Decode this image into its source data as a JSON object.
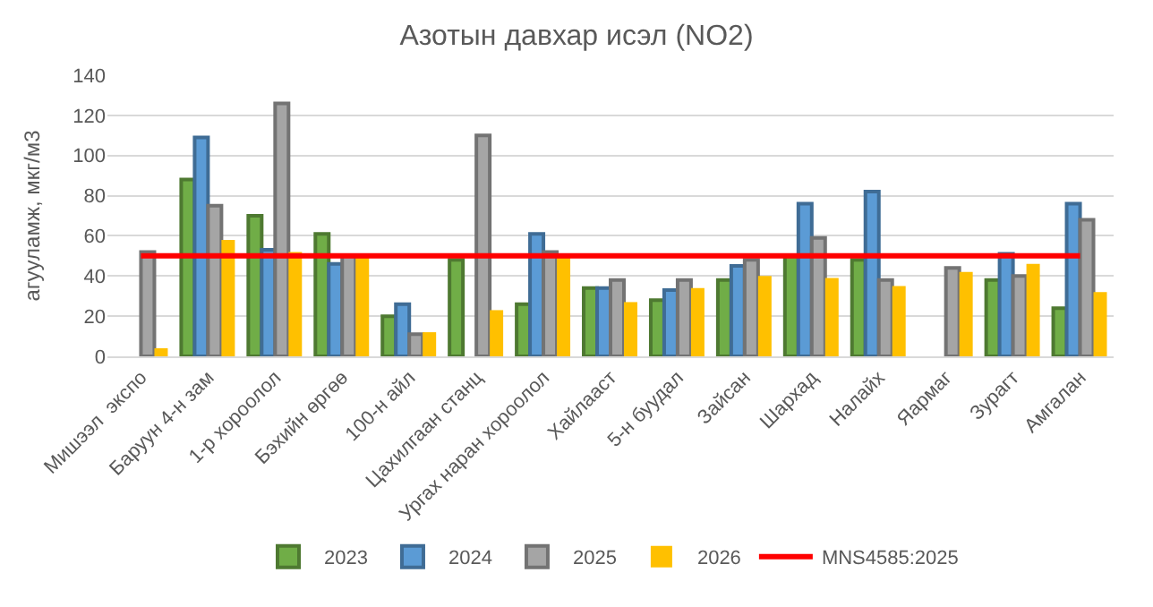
{
  "chart_data": {
    "type": "bar",
    "title": "Азотын давхар исэл (NO2)",
    "ylabel": "агууламж, мкг/м3",
    "categories": [
      "Мишээл  экспо",
      "Баруун 4-н зам",
      "1-р хороолол",
      "Бэхийн өргөө",
      "100-н айл",
      "Цахилгаан станц",
      "Ургах наран хороолол",
      "Хайлааст",
      "5-н буудал",
      "Зайсан",
      "Шархад",
      "Налайх",
      "Яармаг",
      "Зурагт",
      "Амгалан"
    ],
    "series": [
      {
        "name": "2023",
        "color": "#70ad47",
        "values": [
          null,
          88,
          70,
          61,
          20,
          48,
          26,
          34,
          28,
          38,
          50,
          48,
          null,
          38,
          24
        ]
      },
      {
        "name": "2024",
        "color": "#5b9bd5",
        "values": [
          null,
          109,
          53,
          46,
          26,
          null,
          61,
          34,
          33,
          45,
          76,
          82,
          null,
          51,
          76
        ]
      },
      {
        "name": "2025",
        "color": "#a5a5a5",
        "values": [
          52,
          75,
          126,
          50,
          11,
          110,
          52,
          38,
          38,
          48,
          59,
          38,
          44,
          40,
          68
        ]
      },
      {
        "name": "2026",
        "color": "#ffc000",
        "values": [
          4,
          58,
          52,
          50,
          12,
          23,
          50,
          27,
          34,
          40,
          39,
          35,
          42,
          46,
          32
        ]
      },
      {
        "name": "MNS4585:2025",
        "type": "line",
        "color": "#ff0000",
        "values": [
          50,
          50,
          50,
          50,
          50,
          50,
          50,
          50,
          50,
          50,
          50,
          50,
          50,
          50,
          50
        ]
      }
    ],
    "line_style": "solid",
    "ylim": [
      0,
      140
    ],
    "yticks": [
      0,
      20,
      40,
      60,
      80,
      100,
      120,
      140
    ],
    "grid": "y",
    "legend": "bottom"
  }
}
